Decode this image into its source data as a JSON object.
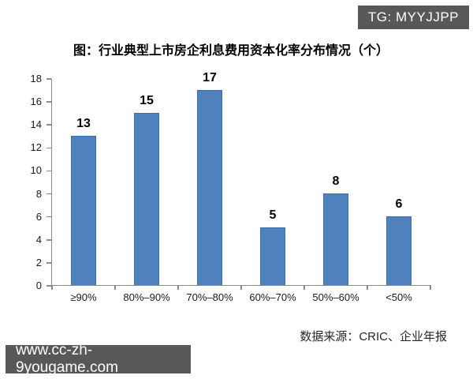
{
  "badge": {
    "text": "TG: MYYJJPP"
  },
  "chart": {
    "title": "图：行业典型上市房企利息费用资本化率分布情况（个）",
    "source": "数据来源：CRIC、企业年报"
  },
  "watermark": {
    "text": "www.cc-zh-9yougame.com"
  },
  "colors": {
    "bar_fill": "#4F81BD",
    "bar_edge": "#3E6FA8",
    "axis": "#8C8C8C",
    "badge_bg": "#58585A",
    "watermark_bg": "#58585A",
    "text": "#000000"
  },
  "chart_data": {
    "type": "bar",
    "categories": [
      "≥90%",
      "80%–90%",
      "70%–80%",
      "60%–70%",
      "50%–60%",
      "<50%"
    ],
    "values": [
      13,
      15,
      17,
      5,
      8,
      6
    ],
    "title": "图：行业典型上市房企利息费用资本化率分布情况（个）",
    "xlabel": "",
    "ylabel": "",
    "ylim": [
      0,
      18
    ],
    "ytick_step": 2,
    "grid": false,
    "legend": "none",
    "bar_color": "#4F81BD",
    "source_note": "数据来源：CRIC、企业年报"
  }
}
